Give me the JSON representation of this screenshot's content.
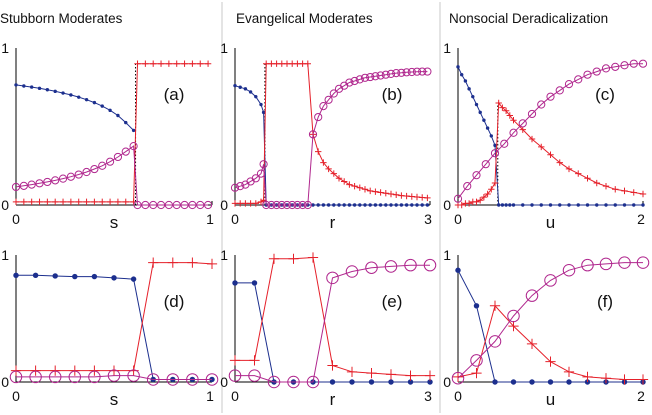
{
  "columns": [
    {
      "title": "Stubborn Moderates"
    },
    {
      "title": "Evangelical Moderates"
    },
    {
      "title": "Nonsocial Deradicalization"
    }
  ],
  "colors": {
    "blue": "#1c2f8e",
    "red": "#e5202a",
    "purple": "#b0278e",
    "dotted": "#000000"
  },
  "series_styles": {
    "s1": "dot",
    "s2": "plus",
    "s3": "circle"
  },
  "chart_data": [
    {
      "id": "a",
      "type": "line",
      "panel_label": "(a)",
      "xlabel": "s",
      "xlim": [
        0,
        1
      ],
      "ylim": [
        0,
        1
      ],
      "xticks": [
        "0",
        "1"
      ],
      "yticks": [
        "0",
        "1"
      ],
      "grid": false,
      "series": [
        {
          "key": "s1",
          "x": [
            0,
            0.04,
            0.08,
            0.12,
            0.16,
            0.2,
            0.24,
            0.28,
            0.32,
            0.36,
            0.4,
            0.44,
            0.48,
            0.52,
            0.56,
            0.6
          ],
          "y": [
            0.765,
            0.758,
            0.751,
            0.743,
            0.734,
            0.724,
            0.713,
            0.701,
            0.687,
            0.671,
            0.652,
            0.63,
            0.603,
            0.57,
            0.525,
            0.475
          ]
        },
        {
          "key": "s2",
          "x": [
            0,
            0.04,
            0.08,
            0.12,
            0.16,
            0.2,
            0.24,
            0.28,
            0.32,
            0.36,
            0.4,
            0.44,
            0.48,
            0.52,
            0.56,
            0.6,
            0.62,
            0.66,
            0.7,
            0.74,
            0.78,
            0.82,
            0.86,
            0.9,
            0.94,
            0.98
          ],
          "y": [
            0.02,
            0.02,
            0.02,
            0.02,
            0.02,
            0.02,
            0.02,
            0.02,
            0.02,
            0.02,
            0.02,
            0.02,
            0.02,
            0.02,
            0.02,
            0.02,
            0.9,
            0.9,
            0.9,
            0.9,
            0.9,
            0.9,
            0.9,
            0.9,
            0.9,
            0.9
          ]
        },
        {
          "key": "s3",
          "x": [
            0,
            0.04,
            0.08,
            0.12,
            0.16,
            0.2,
            0.24,
            0.28,
            0.32,
            0.36,
            0.4,
            0.44,
            0.48,
            0.52,
            0.56,
            0.6,
            0.62,
            0.66,
            0.7,
            0.74,
            0.78,
            0.82,
            0.86,
            0.9,
            0.94,
            0.98
          ],
          "y": [
            0.115,
            0.122,
            0.13,
            0.138,
            0.147,
            0.157,
            0.168,
            0.18,
            0.194,
            0.21,
            0.229,
            0.25,
            0.276,
            0.306,
            0.34,
            0.375,
            0.0,
            0.0,
            0.0,
            0.0,
            0.0,
            0.0,
            0.0,
            0.0,
            0.0,
            0.0
          ]
        }
      ],
      "vlines": [
        {
          "x": 0.61,
          "y0": 0.0,
          "y1": 0.9
        }
      ]
    },
    {
      "id": "b",
      "type": "line",
      "panel_label": "(b)",
      "xlabel": "r",
      "xlim": [
        0,
        3
      ],
      "ylim": [
        0,
        1
      ],
      "xticks": [
        "0",
        "3"
      ],
      "yticks": [
        "0",
        "1"
      ],
      "grid": false,
      "series": [
        {
          "key": "s1",
          "x": [
            0,
            0.08,
            0.16,
            0.24,
            0.32,
            0.4,
            0.44,
            0.48,
            0.56,
            0.64,
            0.72,
            0.8,
            0.88,
            0.96,
            1.04,
            1.12,
            1.2,
            1.28,
            1.36,
            1.44,
            1.52,
            1.6,
            1.68,
            1.76,
            1.84,
            1.92,
            2.0,
            2.08,
            2.16,
            2.24,
            2.32,
            2.4,
            2.48,
            2.56,
            2.64,
            2.72,
            2.8,
            2.88,
            2.96
          ],
          "y": [
            0.76,
            0.75,
            0.74,
            0.72,
            0.69,
            0.64,
            0.59,
            0,
            0,
            0,
            0,
            0,
            0,
            0,
            0,
            0,
            0,
            0,
            0,
            0,
            0,
            0,
            0,
            0,
            0,
            0,
            0,
            0,
            0,
            0,
            0,
            0,
            0,
            0,
            0,
            0,
            0,
            0,
            0
          ]
        },
        {
          "key": "s2",
          "x": [
            0,
            0.08,
            0.16,
            0.24,
            0.32,
            0.4,
            0.44,
            0.48,
            0.56,
            0.64,
            0.72,
            0.8,
            0.88,
            0.96,
            1.04,
            1.12,
            1.2,
            1.28,
            1.36,
            1.44,
            1.52,
            1.6,
            1.68,
            1.76,
            1.84,
            1.92,
            2.0,
            2.08,
            2.16,
            2.24,
            2.32,
            2.4,
            2.48,
            2.56,
            2.64,
            2.72,
            2.8,
            2.88,
            2.96
          ],
          "y": [
            0.01,
            0.01,
            0.01,
            0.01,
            0.01,
            0.02,
            0.03,
            0.9,
            0.9,
            0.9,
            0.9,
            0.9,
            0.9,
            0.9,
            0.9,
            0.9,
            0.45,
            0.34,
            0.27,
            0.23,
            0.2,
            0.17,
            0.15,
            0.13,
            0.12,
            0.11,
            0.1,
            0.09,
            0.085,
            0.08,
            0.075,
            0.07,
            0.065,
            0.06,
            0.057,
            0.054,
            0.051,
            0.048,
            0.045
          ]
        },
        {
          "key": "s3",
          "x": [
            0,
            0.08,
            0.16,
            0.24,
            0.32,
            0.4,
            0.44,
            0.48,
            0.56,
            0.64,
            0.72,
            0.8,
            0.88,
            0.96,
            1.04,
            1.12,
            1.2,
            1.28,
            1.36,
            1.44,
            1.52,
            1.6,
            1.68,
            1.76,
            1.84,
            1.92,
            2.0,
            2.08,
            2.16,
            2.24,
            2.32,
            2.4,
            2.48,
            2.56,
            2.64,
            2.72,
            2.8,
            2.88,
            2.96
          ],
          "y": [
            0.11,
            0.12,
            0.13,
            0.15,
            0.17,
            0.2,
            0.26,
            0,
            0,
            0,
            0,
            0,
            0,
            0,
            0,
            0,
            0.45,
            0.56,
            0.63,
            0.67,
            0.71,
            0.74,
            0.76,
            0.78,
            0.79,
            0.8,
            0.81,
            0.815,
            0.82,
            0.825,
            0.83,
            0.835,
            0.84,
            0.842,
            0.845,
            0.847,
            0.849,
            0.85,
            0.85
          ]
        }
      ],
      "vlines": [
        {
          "x": 0.46,
          "y0": 0.0,
          "y1": 0.9
        }
      ]
    },
    {
      "id": "c",
      "type": "line",
      "panel_label": "(c)",
      "xlabel": "u",
      "xlim": [
        0,
        2
      ],
      "ylim": [
        0,
        1
      ],
      "xticks": [
        "0",
        "2"
      ],
      "yticks": [
        "0",
        "1"
      ],
      "grid": false,
      "series": [
        {
          "key": "s1",
          "x": [
            0,
            0.04,
            0.08,
            0.12,
            0.16,
            0.2,
            0.24,
            0.28,
            0.32,
            0.36,
            0.4,
            0.44,
            0.48,
            0.52,
            0.56,
            0.6,
            0.7,
            0.8,
            0.9,
            1.0,
            1.1,
            1.2,
            1.3,
            1.4,
            1.5,
            1.6,
            1.7,
            1.8,
            1.9,
            2.0
          ],
          "y": [
            0.88,
            0.83,
            0.79,
            0.74,
            0.69,
            0.64,
            0.59,
            0.54,
            0.49,
            0.44,
            0.38,
            0,
            0,
            0,
            0,
            0,
            0,
            0,
            0,
            0,
            0,
            0,
            0,
            0,
            0,
            0,
            0,
            0,
            0,
            0
          ]
        },
        {
          "key": "s2",
          "x": [
            0,
            0.04,
            0.08,
            0.12,
            0.16,
            0.2,
            0.24,
            0.28,
            0.32,
            0.36,
            0.4,
            0.44,
            0.48,
            0.52,
            0.56,
            0.6,
            0.7,
            0.8,
            0.9,
            1.0,
            1.1,
            1.2,
            1.3,
            1.4,
            1.5,
            1.6,
            1.7,
            1.8,
            1.9,
            2.0
          ],
          "y": [
            0.0,
            0.0,
            0.01,
            0.01,
            0.02,
            0.02,
            0.03,
            0.05,
            0.07,
            0.1,
            0.14,
            0.65,
            0.62,
            0.6,
            0.57,
            0.54,
            0.48,
            0.42,
            0.37,
            0.32,
            0.27,
            0.23,
            0.2,
            0.17,
            0.14,
            0.12,
            0.1,
            0.09,
            0.08,
            0.07
          ]
        },
        {
          "key": "s3",
          "x": [
            0,
            0.1,
            0.2,
            0.3,
            0.4,
            0.5,
            0.6,
            0.7,
            0.8,
            0.9,
            1.0,
            1.1,
            1.2,
            1.3,
            1.4,
            1.5,
            1.6,
            1.7,
            1.8,
            1.9,
            2.0
          ],
          "y": [
            0.04,
            0.12,
            0.19,
            0.26,
            0.33,
            0.39,
            0.46,
            0.52,
            0.58,
            0.64,
            0.69,
            0.73,
            0.77,
            0.8,
            0.83,
            0.85,
            0.87,
            0.88,
            0.89,
            0.9,
            0.9
          ]
        }
      ],
      "vlines": [
        {
          "x": 0.43,
          "y0": 0.0,
          "y1": 0.65
        }
      ]
    },
    {
      "id": "d",
      "type": "line",
      "panel_label": "(d)",
      "xlabel": "s",
      "xlim": [
        0,
        1
      ],
      "ylim": [
        0,
        1
      ],
      "xticks": [
        "0",
        "1"
      ],
      "yticks": [
        "0",
        "1"
      ],
      "grid": false,
      "series": [
        {
          "key": "s1",
          "x": [
            0,
            0.1,
            0.2,
            0.3,
            0.4,
            0.5,
            0.6,
            0.7,
            0.8,
            0.9,
            1.0
          ],
          "y": [
            0.84,
            0.84,
            0.835,
            0.83,
            0.83,
            0.82,
            0.81,
            0.02,
            0.02,
            0.02,
            0.02
          ]
        },
        {
          "key": "s2",
          "x": [
            0,
            0.1,
            0.2,
            0.3,
            0.4,
            0.5,
            0.6,
            0.7,
            0.8,
            0.9,
            1.0
          ],
          "y": [
            0.09,
            0.09,
            0.09,
            0.09,
            0.09,
            0.09,
            0.09,
            0.94,
            0.94,
            0.94,
            0.93
          ]
        },
        {
          "key": "s3",
          "x": [
            0,
            0.1,
            0.2,
            0.3,
            0.4,
            0.5,
            0.6,
            0.7,
            0.8,
            0.9,
            1.0
          ],
          "y": [
            0.04,
            0.04,
            0.04,
            0.04,
            0.04,
            0.05,
            0.05,
            0.02,
            0.02,
            0.02,
            0.02
          ]
        }
      ]
    },
    {
      "id": "e",
      "type": "line",
      "panel_label": "(e)",
      "xlabel": "r",
      "xlim": [
        0,
        3
      ],
      "ylim": [
        0,
        1
      ],
      "xticks": [
        "0",
        "3"
      ],
      "yticks": [
        "0",
        "1"
      ],
      "grid": false,
      "series": [
        {
          "key": "s1",
          "x": [
            0,
            0.3,
            0.6,
            0.9,
            1.2,
            1.5,
            1.8,
            2.1,
            2.4,
            2.7,
            3.0
          ],
          "y": [
            0.78,
            0.78,
            0.0,
            0.0,
            0.0,
            0.0,
            0.0,
            0.0,
            0.0,
            0.0,
            0.0
          ]
        },
        {
          "key": "s2",
          "x": [
            0,
            0.3,
            0.6,
            0.9,
            1.2,
            1.5,
            1.8,
            2.1,
            2.4,
            2.7,
            3.0
          ],
          "y": [
            0.17,
            0.17,
            0.97,
            0.97,
            0.98,
            0.13,
            0.08,
            0.07,
            0.06,
            0.05,
            0.05
          ]
        },
        {
          "key": "s3",
          "x": [
            0,
            0.3,
            0.6,
            0.9,
            1.2,
            1.5,
            1.8,
            2.1,
            2.4,
            2.7,
            3.0
          ],
          "y": [
            0.05,
            0.05,
            0.0,
            0.0,
            0.0,
            0.82,
            0.87,
            0.9,
            0.91,
            0.92,
            0.92
          ]
        }
      ]
    },
    {
      "id": "f",
      "type": "line",
      "panel_label": "(f)",
      "xlabel": "u",
      "xlim": [
        0,
        2
      ],
      "ylim": [
        0,
        1
      ],
      "xticks": [
        "0",
        "2"
      ],
      "yticks": [
        "0",
        "1"
      ],
      "grid": false,
      "series": [
        {
          "key": "s1",
          "x": [
            0,
            0.2,
            0.4,
            0.6,
            0.8,
            1.0,
            1.2,
            1.4,
            1.6,
            1.8,
            2.0
          ],
          "y": [
            0.88,
            0.6,
            0.0,
            0.0,
            0.0,
            0.0,
            0.0,
            0.0,
            0.0,
            0.0,
            0.0
          ]
        },
        {
          "key": "s2",
          "x": [
            0,
            0.2,
            0.4,
            0.6,
            0.8,
            1.0,
            1.2,
            1.4,
            1.6,
            1.8,
            2.0
          ],
          "y": [
            0.04,
            0.07,
            0.6,
            0.44,
            0.3,
            0.16,
            0.08,
            0.04,
            0.03,
            0.02,
            0.02
          ]
        },
        {
          "key": "s3",
          "x": [
            0,
            0.2,
            0.4,
            0.6,
            0.8,
            1.0,
            1.2,
            1.4,
            1.6,
            1.8,
            2.0
          ],
          "y": [
            0.03,
            0.17,
            0.32,
            0.52,
            0.68,
            0.8,
            0.88,
            0.92,
            0.93,
            0.94,
            0.94
          ]
        }
      ]
    }
  ]
}
